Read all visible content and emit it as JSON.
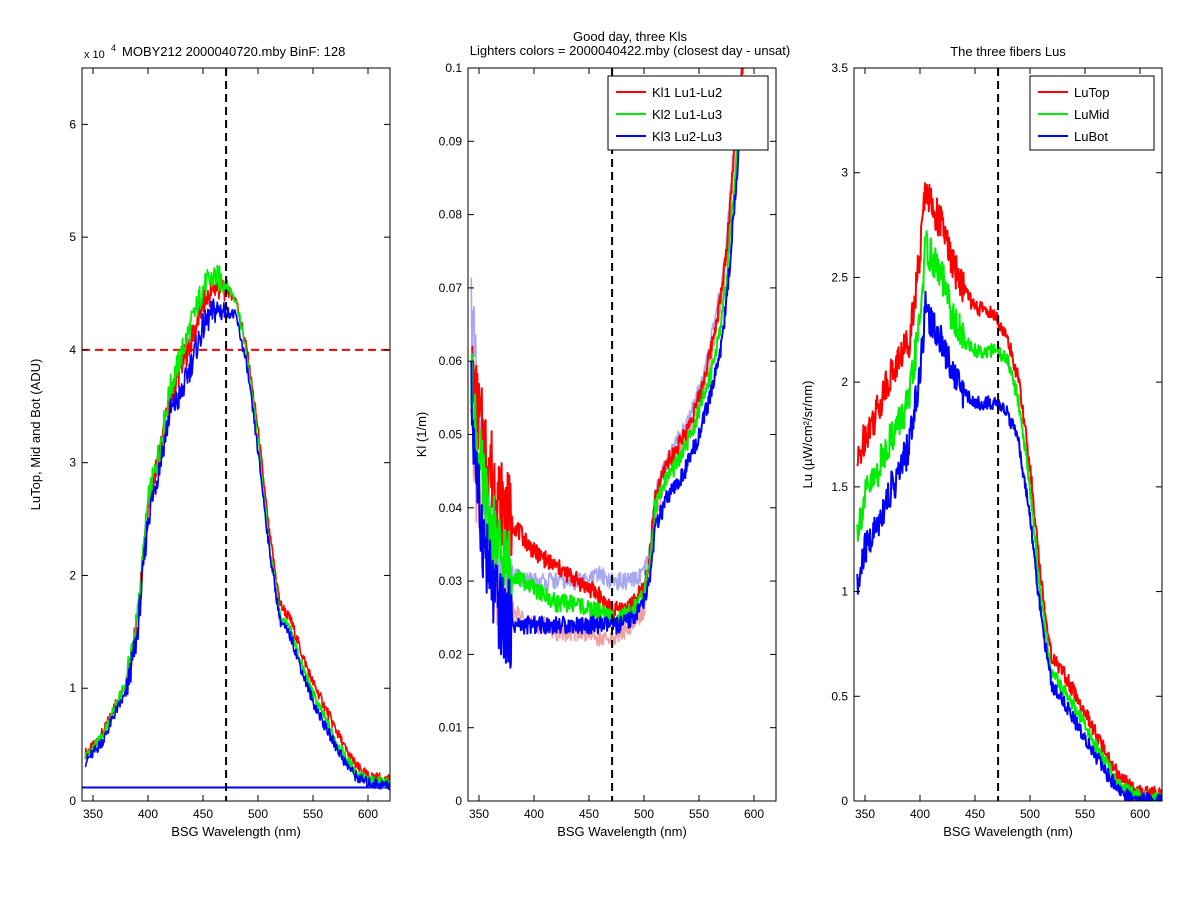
{
  "figure": {
    "suptitle_line1": "Good day, three Kls",
    "suptitle_line2": "Lighters colors = 2000040422.mby (closest day - unsat)"
  },
  "chart_data": [
    {
      "type": "line",
      "title": "MOBY212  2000040720.mby BinF: 128",
      "exponent_label": "x 10",
      "exponent_power": "4",
      "xlabel": "BSG Wavelength (nm)",
      "ylabel": "LuTop, Mid and Bot (ADU)",
      "xlim": [
        340,
        620
      ],
      "ylim": [
        0,
        6.5
      ],
      "xticks": [
        350,
        400,
        450,
        500,
        550,
        600
      ],
      "xtick_labels": [
        "350",
        "400",
        "450",
        "500",
        "550",
        "600"
      ],
      "yticks": [
        0,
        1,
        2,
        3,
        4,
        5,
        6
      ],
      "ytick_labels": [
        "0",
        "1",
        "2",
        "3",
        "4",
        "5",
        "6"
      ],
      "hlines": [
        {
          "y": 4.0,
          "color": "#ff0000",
          "style": "dashed"
        },
        {
          "y": 0.12,
          "color": "#0000ff",
          "style": "solid"
        }
      ],
      "vline": {
        "x": 471,
        "color": "#000000",
        "style": "dashed"
      },
      "x": [
        343,
        350,
        360,
        370,
        380,
        390,
        400,
        410,
        420,
        430,
        440,
        450,
        460,
        470,
        480,
        490,
        500,
        510,
        520,
        530,
        540,
        550,
        560,
        570,
        580,
        590,
        600,
        610,
        620
      ],
      "series": [
        {
          "color": "#ff0000",
          "values": [
            0.42,
            0.48,
            0.62,
            0.85,
            1.05,
            1.55,
            2.6,
            3.05,
            3.55,
            3.85,
            4.1,
            4.4,
            4.55,
            4.55,
            4.45,
            4.0,
            3.3,
            2.4,
            1.75,
            1.6,
            1.3,
            1.05,
            0.85,
            0.65,
            0.45,
            0.3,
            0.22,
            0.2,
            0.18
          ]
        },
        {
          "color": "#00ee00",
          "values": [
            0.4,
            0.46,
            0.6,
            0.83,
            1.05,
            1.6,
            2.65,
            3.1,
            3.65,
            3.95,
            4.25,
            4.55,
            4.65,
            4.6,
            4.45,
            3.95,
            3.2,
            2.3,
            1.65,
            1.5,
            1.2,
            0.95,
            0.75,
            0.55,
            0.38,
            0.24,
            0.18,
            0.17,
            0.16
          ]
        },
        {
          "color": "#0000ff",
          "values": [
            0.35,
            0.42,
            0.55,
            0.78,
            0.95,
            1.45,
            2.5,
            2.95,
            3.45,
            3.6,
            3.9,
            4.2,
            4.35,
            4.35,
            4.3,
            3.85,
            3.1,
            2.25,
            1.6,
            1.45,
            1.15,
            0.88,
            0.68,
            0.5,
            0.33,
            0.21,
            0.16,
            0.15,
            0.14
          ]
        }
      ]
    },
    {
      "type": "line",
      "xlabel": "BSG Wavelength (nm)",
      "ylabel": "Kl (1/m)",
      "xlim": [
        340,
        620
      ],
      "ylim": [
        0,
        0.1
      ],
      "xticks": [
        350,
        400,
        450,
        500,
        550,
        600
      ],
      "xtick_labels": [
        "350",
        "400",
        "450",
        "500",
        "550",
        "600"
      ],
      "yticks": [
        0,
        0.01,
        0.02,
        0.03,
        0.04,
        0.05,
        0.06,
        0.07,
        0.08,
        0.09,
        0.1
      ],
      "ytick_labels": [
        "0",
        "0.01",
        "0.02",
        "0.03",
        "0.04",
        "0.05",
        "0.06",
        "0.07",
        "0.08",
        "0.09",
        "0.1"
      ],
      "vline": {
        "x": 471,
        "color": "#000000",
        "style": "dashed"
      },
      "legend_position": "top-right",
      "x": [
        343,
        350,
        360,
        370,
        380,
        390,
        400,
        410,
        420,
        430,
        440,
        450,
        460,
        470,
        480,
        490,
        500,
        505,
        510,
        520,
        530,
        540,
        550,
        560,
        570,
        575,
        580,
        585,
        590
      ],
      "series": [
        {
          "name": "Kl1 Lu1-Lu2",
          "color": "#ff0000",
          "values": [
            0.058,
            0.052,
            0.046,
            0.041,
            0.038,
            0.036,
            0.034,
            0.033,
            0.032,
            0.031,
            0.03,
            0.029,
            0.028,
            0.026,
            0.026,
            0.027,
            0.029,
            0.033,
            0.041,
            0.046,
            0.048,
            0.051,
            0.055,
            0.061,
            0.069,
            0.075,
            0.085,
            0.095,
            0.101
          ]
        },
        {
          "name": "Kl2 Lu1-Lu3",
          "color": "#00ee00",
          "values": [
            0.056,
            0.046,
            0.037,
            0.033,
            0.031,
            0.03,
            0.029,
            0.028,
            0.027,
            0.027,
            0.027,
            0.026,
            0.026,
            0.025,
            0.025,
            0.026,
            0.028,
            0.032,
            0.04,
            0.044,
            0.046,
            0.049,
            0.053,
            0.058,
            0.065,
            0.071,
            0.08,
            0.09,
            0.098
          ]
        },
        {
          "name": "Kl3 Lu2-Lu3",
          "color": "#0000ff",
          "values": [
            0.055,
            0.04,
            0.03,
            0.025,
            0.024,
            0.024,
            0.024,
            0.024,
            0.024,
            0.024,
            0.024,
            0.024,
            0.024,
            0.024,
            0.024,
            0.025,
            0.027,
            0.03,
            0.037,
            0.041,
            0.043,
            0.046,
            0.05,
            0.055,
            0.062,
            0.068,
            0.077,
            0.087,
            0.096
          ]
        },
        {
          "color": "#f0a0a0",
          "values": [
            0.05,
            0.04,
            0.032,
            0.028,
            0.026,
            0.025,
            0.024,
            0.024,
            0.023,
            0.023,
            0.023,
            0.023,
            0.022,
            0.022,
            0.023,
            0.024,
            0.026,
            0.031,
            0.039,
            0.044,
            0.047,
            0.05,
            0.054,
            0.06,
            0.068,
            0.074,
            0.084,
            0.094,
            0.1
          ]
        },
        {
          "color": "#a8a8f0",
          "values": [
            0.068,
            0.05,
            0.038,
            0.033,
            0.031,
            0.03,
            0.03,
            0.03,
            0.03,
            0.03,
            0.03,
            0.03,
            0.031,
            0.03,
            0.03,
            0.03,
            0.031,
            0.034,
            0.042,
            0.046,
            0.049,
            0.052,
            0.056,
            0.062,
            0.07,
            0.076,
            0.086,
            0.096,
            0.101
          ]
        }
      ]
    },
    {
      "type": "line",
      "title": "The three fibers Lus",
      "xlabel": "BSG Wavelength (nm)",
      "ylabel": "Lu (µW/cm²/sr/nm)",
      "xlim": [
        340,
        620
      ],
      "ylim": [
        0,
        3.5
      ],
      "xticks": [
        350,
        400,
        450,
        500,
        550,
        600
      ],
      "xtick_labels": [
        "350",
        "400",
        "450",
        "500",
        "550",
        "600"
      ],
      "yticks": [
        0,
        0.5,
        1,
        1.5,
        2,
        2.5,
        3,
        3.5
      ],
      "ytick_labels": [
        "0",
        "0.5",
        "1",
        "1.5",
        "2",
        "2.5",
        "3",
        "3.5"
      ],
      "vline": {
        "x": 471,
        "color": "#000000",
        "style": "dashed"
      },
      "legend_position": "top-right",
      "x": [
        343,
        350,
        360,
        370,
        380,
        390,
        400,
        405,
        410,
        420,
        430,
        440,
        450,
        460,
        470,
        480,
        490,
        500,
        510,
        520,
        530,
        540,
        550,
        560,
        570,
        580,
        590,
        600,
        610,
        620
      ],
      "series": [
        {
          "name": "LuTop",
          "color": "#ff0000",
          "values": [
            1.6,
            1.75,
            1.85,
            2.0,
            2.1,
            2.2,
            2.6,
            2.95,
            2.85,
            2.75,
            2.55,
            2.45,
            2.35,
            2.35,
            2.3,
            2.2,
            2.0,
            1.6,
            1.05,
            0.68,
            0.62,
            0.52,
            0.42,
            0.32,
            0.22,
            0.13,
            0.07,
            0.04,
            0.035,
            0.03
          ]
        },
        {
          "name": "LuMid",
          "color": "#00ee00",
          "values": [
            1.3,
            1.45,
            1.55,
            1.7,
            1.8,
            1.9,
            2.3,
            2.65,
            2.6,
            2.5,
            2.3,
            2.2,
            2.15,
            2.15,
            2.15,
            2.1,
            1.9,
            1.5,
            0.95,
            0.6,
            0.54,
            0.45,
            0.36,
            0.26,
            0.17,
            0.09,
            0.04,
            0.02,
            0.015,
            0.01
          ]
        },
        {
          "name": "LuBot",
          "color": "#0000ff",
          "values": [
            1.0,
            1.2,
            1.3,
            1.45,
            1.55,
            1.7,
            2.05,
            2.35,
            2.3,
            2.2,
            2.05,
            1.95,
            1.9,
            1.9,
            1.9,
            1.85,
            1.7,
            1.35,
            0.88,
            0.55,
            0.48,
            0.39,
            0.3,
            0.21,
            0.13,
            0.06,
            0.02,
            0.01,
            0.005,
            0.0
          ]
        }
      ]
    }
  ]
}
